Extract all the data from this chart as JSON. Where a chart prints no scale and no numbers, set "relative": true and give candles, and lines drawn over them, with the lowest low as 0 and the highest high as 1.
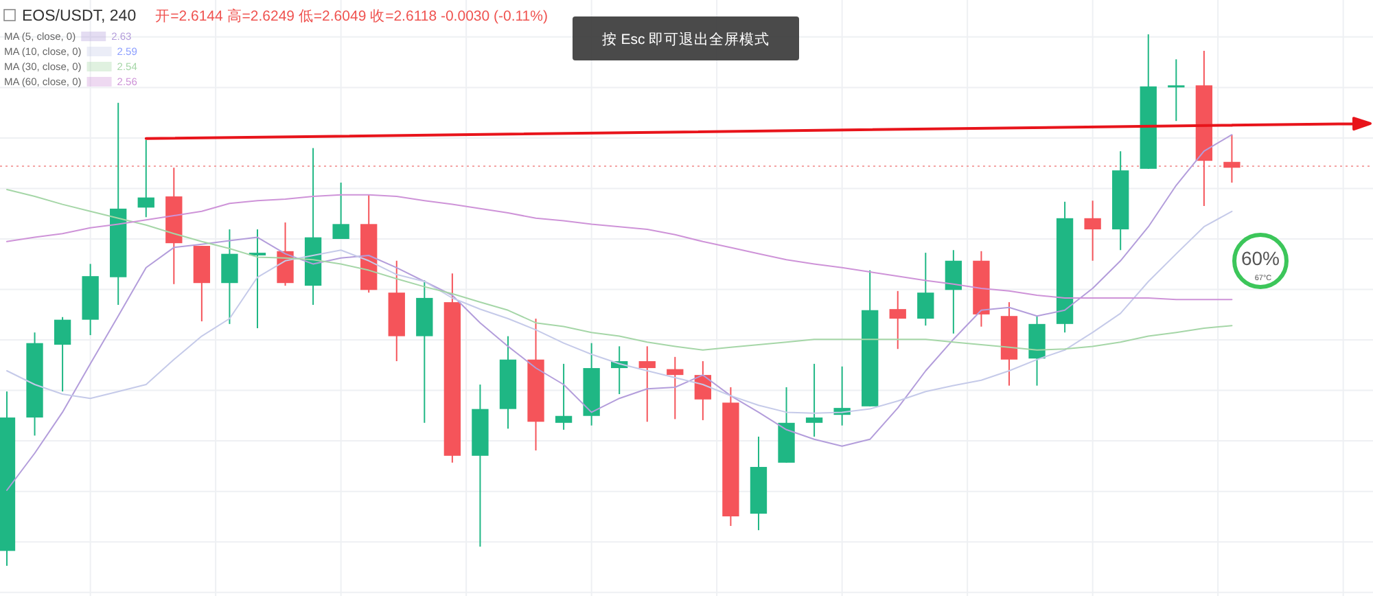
{
  "chart_data": {
    "type": "candlestick",
    "relative": true,
    "title": "EOS/USDT, 240",
    "subtitle": "开=2.6144 高=2.6249 低=2.6049 收=2.6118 -0.0030 (-0.11%)",
    "categories": [
      null,
      null,
      null,
      null,
      null,
      null,
      null,
      null,
      null,
      null,
      null,
      null,
      null,
      null,
      null,
      null,
      null,
      null,
      null,
      null,
      null,
      null,
      null,
      null,
      null,
      null,
      null,
      null,
      null,
      null,
      null,
      null,
      null,
      null,
      null,
      null,
      null,
      null,
      null,
      null,
      null,
      null,
      null,
      null,
      null
    ],
    "ohlc": [
      [
        0.028,
        0.328,
        0,
        0.279
      ],
      [
        0.279,
        0.439,
        0.245,
        0.419
      ],
      [
        0.416,
        0.468,
        0.328,
        0.463
      ],
      [
        0.463,
        0.568,
        0.434,
        0.545
      ],
      [
        0.543,
        0.871,
        0.491,
        0.672
      ],
      [
        0.674,
        0.801,
        0.656,
        0.693
      ],
      [
        0.695,
        0.749,
        0.53,
        0.607
      ],
      [
        0.602,
        0.602,
        0.46,
        0.532
      ],
      [
        0.532,
        0.633,
        0.455,
        0.587
      ],
      [
        0.584,
        0.633,
        0.447,
        0.589
      ],
      [
        0.592,
        0.646,
        0.527,
        0.532
      ],
      [
        0.527,
        0.786,
        0.491,
        0.618
      ],
      [
        0.615,
        0.721,
        0.615,
        0.643
      ],
      [
        0.643,
        0.698,
        0.514,
        0.519
      ],
      [
        0.514,
        0.574,
        0.385,
        0.432
      ],
      [
        0.432,
        0.537,
        0.269,
        0.504
      ],
      [
        0.496,
        0.55,
        0.194,
        0.207
      ],
      [
        0.207,
        0.341,
        0.036,
        0.295
      ],
      [
        0.295,
        0.432,
        0.258,
        0.388
      ],
      [
        0.388,
        0.465,
        0.217,
        0.271
      ],
      [
        0.269,
        0.38,
        0.256,
        0.282
      ],
      [
        0.282,
        0.419,
        0.264,
        0.372
      ],
      [
        0.372,
        0.413,
        0.323,
        0.385
      ],
      [
        0.385,
        0.413,
        0.271,
        0.372
      ],
      [
        0.37,
        0.393,
        0.276,
        0.359
      ],
      [
        0.359,
        0.385,
        0.274,
        0.313
      ],
      [
        0.307,
        0.336,
        0.075,
        0.093
      ],
      [
        0.098,
        0.243,
        0.067,
        0.186
      ],
      [
        0.194,
        0.336,
        0.194,
        0.269
      ],
      [
        0.269,
        0.38,
        0.243,
        0.279
      ],
      [
        0.284,
        0.375,
        0.264,
        0.297
      ],
      [
        0.3,
        0.556,
        0.3,
        0.481
      ],
      [
        0.483,
        0.517,
        0.408,
        0.465
      ],
      [
        0.465,
        0.589,
        0.452,
        0.514
      ],
      [
        0.519,
        0.594,
        0.437,
        0.574
      ],
      [
        0.574,
        0.592,
        0.45,
        0.473
      ],
      [
        0.47,
        0.496,
        0.339,
        0.388
      ],
      [
        0.39,
        0.47,
        0.339,
        0.455
      ],
      [
        0.455,
        0.685,
        0.439,
        0.654
      ],
      [
        0.654,
        0.687,
        0.574,
        0.633
      ],
      [
        0.633,
        0.78,
        0.594,
        0.744
      ],
      [
        0.747,
        1,
        0.747,
        0.902
      ],
      [
        0.902,
        0.953,
        0.837,
        0.904
      ],
      [
        0.904,
        0.969,
        0.677,
        0.762
      ],
      [
        0.76,
        0.811,
        0.721,
        0.749
      ]
    ],
    "colors": [
      "#1fb784",
      "#1fb784",
      "#1fb784",
      "#1fb784",
      "#1fb784",
      "#1fb784",
      "#f5545a",
      "#f5545a",
      "#1fb784",
      "#1fb784",
      "#f5545a",
      "#1fb784",
      "#1fb784",
      "#f5545a",
      "#f5545a",
      "#1fb784",
      "#f5545a",
      "#1fb784",
      "#1fb784",
      "#f5545a",
      "#1fb784",
      "#1fb784",
      "#1fb784",
      "#f5545a",
      "#f5545a",
      "#f5545a",
      "#f5545a",
      "#1fb784",
      "#1fb784",
      "#1fb784",
      "#1fb784",
      "#1fb784",
      "#f5545a",
      "#1fb784",
      "#1fb784",
      "#f5545a",
      "#f5545a",
      "#1fb784",
      "#1fb784",
      "#f5545a",
      "#1fb784",
      "#1fb784",
      "#1fb784",
      "#f5545a",
      "#f5545a"
    ],
    "series": [
      {
        "type": "line",
        "name": "MA (5, close, 0)",
        "color": "#b39ddb",
        "values": [
          0.142,
          0.212,
          0.289,
          0.38,
          0.47,
          0.561,
          0.599,
          0.605,
          0.612,
          0.618,
          0.587,
          0.568,
          0.579,
          0.584,
          0.561,
          0.535,
          0.509,
          0.457,
          0.413,
          0.372,
          0.341,
          0.289,
          0.315,
          0.333,
          0.336,
          0.359,
          0.32,
          0.289,
          0.256,
          0.238,
          0.225,
          0.238,
          0.297,
          0.367,
          0.426,
          0.481,
          0.486,
          0.47,
          0.481,
          0.522,
          0.574,
          0.638,
          0.716,
          0.78,
          0.811
        ]
      },
      {
        "type": "line",
        "name": "MA (10, close, 0)",
        "color": "#c5cae9",
        "values": [
          0.367,
          0.341,
          0.323,
          0.315,
          0.328,
          0.341,
          0.388,
          0.432,
          0.465,
          0.543,
          0.574,
          0.584,
          0.594,
          0.574,
          0.548,
          0.535,
          0.504,
          0.483,
          0.465,
          0.444,
          0.419,
          0.398,
          0.38,
          0.367,
          0.354,
          0.341,
          0.32,
          0.302,
          0.289,
          0.287,
          0.289,
          0.295,
          0.31,
          0.328,
          0.339,
          0.349,
          0.367,
          0.388,
          0.406,
          0.439,
          0.475,
          0.535,
          0.587,
          0.638,
          0.667
        ]
      },
      {
        "type": "line",
        "name": "MA (30, close, 0)",
        "color": "#a5d6a7",
        "values": [
          0.708,
          0.695,
          0.68,
          0.667,
          0.654,
          0.641,
          0.625,
          0.61,
          0.597,
          0.581,
          0.579,
          0.576,
          0.568,
          0.556,
          0.54,
          0.525,
          0.512,
          0.496,
          0.481,
          0.457,
          0.45,
          0.439,
          0.432,
          0.421,
          0.413,
          0.406,
          0.411,
          0.416,
          0.421,
          0.426,
          0.426,
          0.426,
          0.426,
          0.426,
          0.421,
          0.416,
          0.411,
          0.406,
          0.408,
          0.413,
          0.421,
          0.432,
          0.439,
          0.447,
          0.452
        ]
      },
      {
        "type": "line",
        "name": "MA (60, close, 0)",
        "color": "#ce93d8",
        "values": [
          0.61,
          0.618,
          0.625,
          0.636,
          0.643,
          0.651,
          0.659,
          0.667,
          0.682,
          0.687,
          0.69,
          0.695,
          0.698,
          0.698,
          0.695,
          0.687,
          0.68,
          0.672,
          0.664,
          0.654,
          0.649,
          0.643,
          0.638,
          0.633,
          0.623,
          0.61,
          0.599,
          0.587,
          0.576,
          0.568,
          0.561,
          0.553,
          0.545,
          0.537,
          0.53,
          0.522,
          0.517,
          0.509,
          0.504,
          0.504,
          0.504,
          0.504,
          0.501,
          0.501,
          0.501
        ]
      },
      {
        "type": "line",
        "color": "#e8141b",
        "values": [
          null,
          null,
          null,
          null,
          null,
          0.804,
          null,
          null,
          null,
          null,
          null,
          null,
          null,
          null,
          null,
          null,
          null,
          null,
          null,
          null,
          null,
          null,
          null,
          null,
          null,
          null,
          null,
          null,
          null,
          null,
          null,
          null,
          null,
          null,
          null,
          null,
          null,
          null,
          null,
          null,
          null,
          null,
          null,
          null,
          0.829
        ]
      }
    ],
    "ref_lines": [
      {
        "axis": "y",
        "value": 0.752,
        "color": "#f4a3a3",
        "line_style": "dotted"
      }
    ],
    "grid": true,
    "legend": "top left",
    "annotations": [
      "2.63",
      "2.59",
      "2.54",
      "2.56",
      "按 Esc 即可退出全屏模式",
      "60%",
      "67°C"
    ]
  }
}
